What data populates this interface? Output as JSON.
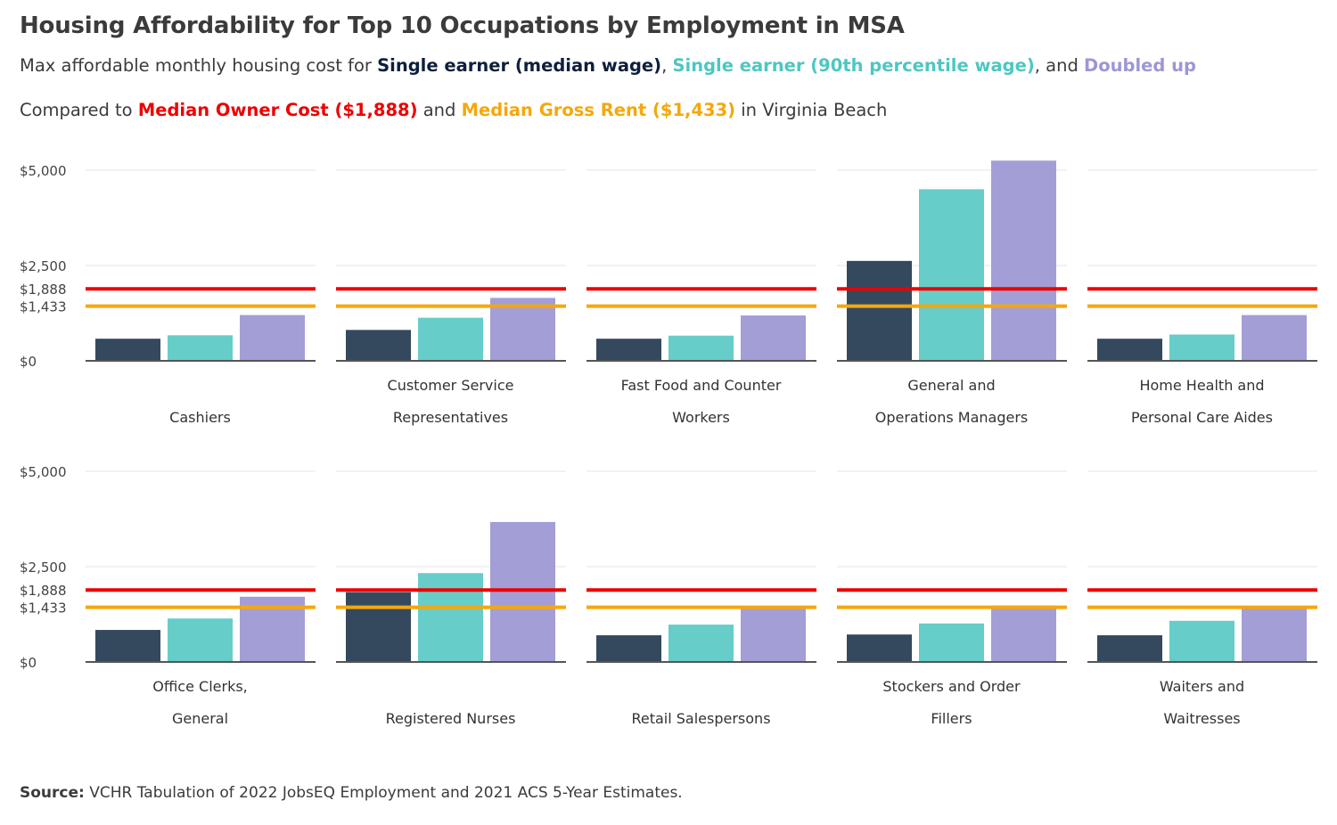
{
  "header": {
    "title": "Housing Affordability for Top 10 Occupations by Employment in MSA",
    "subtitle1": {
      "prefix": "Max affordable monthly housing cost for ",
      "s1": "Single earner (median wage)",
      "sep1": ", ",
      "s2": "Single earner (90th percentile wage)",
      "sep2": ", and ",
      "s3": "Doubled up"
    },
    "subtitle2": {
      "prefix": "Compared to ",
      "ref1": "Median Owner Cost ($1,888)",
      "mid": " and ",
      "ref2": "Median Gross Rent ($1,433)",
      "suffix": " in Virginia Beach"
    }
  },
  "source": {
    "label": "Source:",
    "text": " VCHR Tabulation of 2022 JobsEQ Employment and 2021 ACS 5-Year Estimates."
  },
  "colors": {
    "single_median": "#34495e",
    "single_90th": "#66cdc9",
    "doubled_up": "#a39ed6",
    "median_owner_cost": "#ee0000",
    "median_gross_rent": "#f5a70c",
    "gridline": "#e6e6e6",
    "axis": "#555555",
    "subtitle_median": "#0d1f3c",
    "subtitle_90th": "#4dc7c1",
    "subtitle_doubled": "#9c96d6"
  },
  "chart_data": {
    "type": "bar",
    "layout": "small multiples, 2 rows x 5 columns",
    "ylim": [
      0,
      5000
    ],
    "yticks": [
      0,
      1433,
      1888,
      2500,
      5000
    ],
    "ytick_labels": [
      "$0",
      "$1,433",
      "$1,888",
      "$2,500",
      "$5,000"
    ],
    "grid": true,
    "series_order": [
      "single_median",
      "single_90th",
      "doubled_up"
    ],
    "reference_lines": [
      {
        "name": "Median Owner Cost",
        "value": 1888,
        "color_key": "median_owner_cost"
      },
      {
        "name": "Median Gross Rent",
        "value": 1433,
        "color_key": "median_gross_rent"
      }
    ],
    "panels": [
      {
        "label_lines": [
          "Cashiers"
        ],
        "values": [
          580,
          670,
          1200
        ]
      },
      {
        "label_lines": [
          "Customer Service",
          "Representatives"
        ],
        "values": [
          810,
          1130,
          1650
        ]
      },
      {
        "label_lines": [
          "Fast Food and Counter",
          "Workers"
        ],
        "values": [
          580,
          660,
          1190
        ]
      },
      {
        "label_lines": [
          "General and",
          "Operations Managers"
        ],
        "values": [
          2620,
          4500,
          5250
        ]
      },
      {
        "label_lines": [
          "Home Health and",
          "Personal Care Aides"
        ],
        "values": [
          580,
          690,
          1200
        ]
      },
      {
        "label_lines": [
          "Office Clerks,",
          "General"
        ],
        "values": [
          840,
          1140,
          1710
        ]
      },
      {
        "label_lines": [
          "Registered Nurses"
        ],
        "values": [
          1830,
          2330,
          3670
        ]
      },
      {
        "label_lines": [
          "Retail Salespersons"
        ],
        "values": [
          700,
          980,
          1420
        ]
      },
      {
        "label_lines": [
          "Stockers and Order",
          "Fillers"
        ],
        "values": [
          720,
          1010,
          1480
        ]
      },
      {
        "label_lines": [
          "Waiters and",
          "Waitresses"
        ],
        "values": [
          700,
          1080,
          1450
        ]
      }
    ]
  }
}
